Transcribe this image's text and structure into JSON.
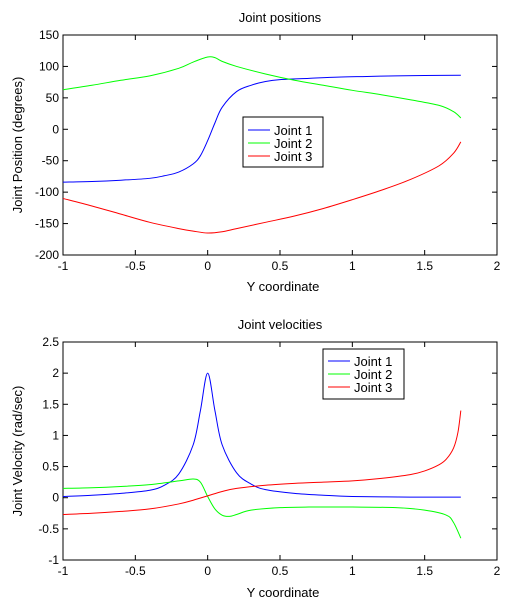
{
  "chart_data": [
    {
      "type": "line",
      "title": "Joint positions",
      "xlabel": "Y coordinate",
      "ylabel": "Joint Position (degrees)",
      "xlim": [
        -1,
        2
      ],
      "ylim": [
        -200,
        150
      ],
      "xticks": [
        "-1",
        "-0.5",
        "0",
        "0.5",
        "1",
        "1.5",
        "2"
      ],
      "yticks": [
        "-200",
        "-150",
        "-100",
        "-50",
        "0",
        "50",
        "100",
        "150"
      ],
      "legend_position": "center",
      "series": [
        {
          "name": "Joint 1",
          "color": "#0000ff",
          "x": [
            -1,
            -0.8,
            -0.6,
            -0.4,
            -0.3,
            -0.2,
            -0.1,
            -0.05,
            0,
            0.05,
            0.1,
            0.2,
            0.3,
            0.4,
            0.5,
            0.7,
            0.9,
            1.1,
            1.3,
            1.5,
            1.75
          ],
          "y": [
            -84,
            -83,
            -81,
            -78,
            -74,
            -68,
            -55,
            -42,
            -18,
            10,
            35,
            60,
            70,
            76,
            79,
            81,
            83,
            84,
            85,
            85.5,
            86
          ]
        },
        {
          "name": "Joint 2",
          "color": "#00ff00",
          "x": [
            -1,
            -0.8,
            -0.6,
            -0.4,
            -0.2,
            -0.1,
            0,
            0.05,
            0.1,
            0.2,
            0.4,
            0.6,
            0.8,
            1.0,
            1.2,
            1.4,
            1.6,
            1.7,
            1.75
          ],
          "y": [
            63,
            70,
            78,
            85,
            97,
            107,
            115,
            114,
            108,
            100,
            88,
            78,
            70,
            62,
            55,
            47,
            38,
            28,
            18
          ]
        },
        {
          "name": "Joint 3",
          "color": "#ff0000",
          "x": [
            -1,
            -0.8,
            -0.6,
            -0.4,
            -0.2,
            -0.1,
            0,
            0.1,
            0.2,
            0.4,
            0.6,
            0.8,
            1.0,
            1.2,
            1.4,
            1.6,
            1.7,
            1.75
          ],
          "y": [
            -110,
            -122,
            -135,
            -148,
            -158,
            -162,
            -165,
            -163,
            -158,
            -148,
            -138,
            -126,
            -112,
            -97,
            -80,
            -58,
            -38,
            -20
          ]
        }
      ]
    },
    {
      "type": "line",
      "title": "Joint velocities",
      "xlabel": "Y coordinate",
      "ylabel": "Joint Velocity (rad/sec)",
      "xlim": [
        -1,
        2
      ],
      "ylim": [
        -1,
        2.5
      ],
      "xticks": [
        "-1",
        "-0.5",
        "0",
        "0.5",
        "1",
        "1.5",
        "2"
      ],
      "yticks": [
        "-1",
        "-0.5",
        "0",
        "0.5",
        "1",
        "1.5",
        "2",
        "2.5"
      ],
      "legend_position": "top-right",
      "series": [
        {
          "name": "Joint 1",
          "color": "#0000ff",
          "x": [
            -1,
            -0.8,
            -0.6,
            -0.4,
            -0.3,
            -0.2,
            -0.1,
            -0.05,
            0,
            0.05,
            0.1,
            0.2,
            0.3,
            0.4,
            0.6,
            0.8,
            1.0,
            1.4,
            1.75
          ],
          "y": [
            0.02,
            0.04,
            0.07,
            0.12,
            0.2,
            0.38,
            0.85,
            1.4,
            2.0,
            1.4,
            0.85,
            0.4,
            0.22,
            0.13,
            0.07,
            0.04,
            0.02,
            0.01,
            0.01
          ]
        },
        {
          "name": "Joint 2",
          "color": "#00ff00",
          "x": [
            -1,
            -0.8,
            -0.6,
            -0.4,
            -0.2,
            -0.1,
            -0.05,
            0,
            0.05,
            0.1,
            0.15,
            0.2,
            0.3,
            0.5,
            0.7,
            1.0,
            1.3,
            1.5,
            1.65,
            1.7,
            1.75
          ],
          "y": [
            0.15,
            0.16,
            0.18,
            0.21,
            0.27,
            0.3,
            0.25,
            0.02,
            -0.18,
            -0.28,
            -0.3,
            -0.27,
            -0.2,
            -0.16,
            -0.15,
            -0.15,
            -0.16,
            -0.2,
            -0.28,
            -0.4,
            -0.65
          ]
        },
        {
          "name": "Joint 3",
          "color": "#ff0000",
          "x": [
            -1,
            -0.8,
            -0.6,
            -0.4,
            -0.2,
            -0.1,
            0,
            0.1,
            0.2,
            0.4,
            0.6,
            0.8,
            1.0,
            1.2,
            1.4,
            1.5,
            1.6,
            1.65,
            1.7,
            1.73,
            1.75
          ],
          "y": [
            -0.27,
            -0.25,
            -0.22,
            -0.18,
            -0.1,
            -0.04,
            0.03,
            0.1,
            0.15,
            0.2,
            0.23,
            0.25,
            0.27,
            0.31,
            0.37,
            0.43,
            0.53,
            0.62,
            0.8,
            1.05,
            1.4
          ]
        }
      ]
    }
  ]
}
